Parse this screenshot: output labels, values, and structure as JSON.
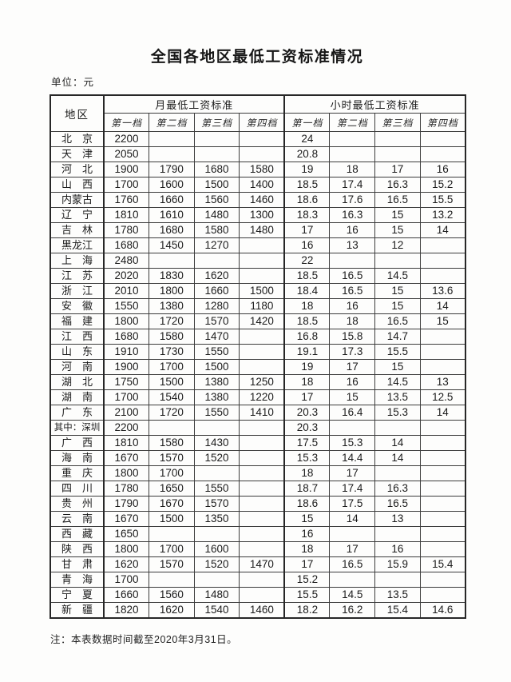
{
  "page": {
    "title": "全国各地区最低工资标准情况",
    "unit_label": "单位：元",
    "note": "注：本表数据时间截至2020年3月31日。"
  },
  "table": {
    "region_header": "地区",
    "monthly_group_header": "月最低工资标准",
    "hourly_group_header": "小时最低工资标准",
    "tier_headers": [
      "第一档",
      "第二档",
      "第三档",
      "第四档"
    ],
    "rows": [
      {
        "region": "北　京",
        "monthly": [
          "2200",
          "",
          "",
          ""
        ],
        "hourly": [
          "24",
          "",
          "",
          ""
        ]
      },
      {
        "region": "天　津",
        "monthly": [
          "2050",
          "",
          "",
          ""
        ],
        "hourly": [
          "20.8",
          "",
          "",
          ""
        ]
      },
      {
        "region": "河　北",
        "monthly": [
          "1900",
          "1790",
          "1680",
          "1580"
        ],
        "hourly": [
          "19",
          "18",
          "17",
          "16"
        ]
      },
      {
        "region": "山　西",
        "monthly": [
          "1700",
          "1600",
          "1500",
          "1400"
        ],
        "hourly": [
          "18.5",
          "17.4",
          "16.3",
          "15.2"
        ]
      },
      {
        "region": "内蒙古",
        "monthly": [
          "1760",
          "1660",
          "1560",
          "1460"
        ],
        "hourly": [
          "18.6",
          "17.6",
          "16.5",
          "15.5"
        ]
      },
      {
        "region": "辽　宁",
        "monthly": [
          "1810",
          "1610",
          "1480",
          "1300"
        ],
        "hourly": [
          "18.3",
          "16.3",
          "15",
          "13.2"
        ]
      },
      {
        "region": "吉　林",
        "monthly": [
          "1780",
          "1680",
          "1580",
          "1480"
        ],
        "hourly": [
          "17",
          "16",
          "15",
          "14"
        ]
      },
      {
        "region": "黑龙江",
        "monthly": [
          "1680",
          "1450",
          "1270",
          ""
        ],
        "hourly": [
          "16",
          "13",
          "12",
          ""
        ]
      },
      {
        "region": "上　海",
        "monthly": [
          "2480",
          "",
          "",
          ""
        ],
        "hourly": [
          "22",
          "",
          "",
          ""
        ]
      },
      {
        "region": "江　苏",
        "monthly": [
          "2020",
          "1830",
          "1620",
          ""
        ],
        "hourly": [
          "18.5",
          "16.5",
          "14.5",
          ""
        ]
      },
      {
        "region": "浙　江",
        "monthly": [
          "2010",
          "1800",
          "1660",
          "1500"
        ],
        "hourly": [
          "18.4",
          "16.5",
          "15",
          "13.6"
        ]
      },
      {
        "region": "安　徽",
        "monthly": [
          "1550",
          "1380",
          "1280",
          "1180"
        ],
        "hourly": [
          "18",
          "16",
          "15",
          "14"
        ]
      },
      {
        "region": "福　建",
        "monthly": [
          "1800",
          "1720",
          "1570",
          "1420"
        ],
        "hourly": [
          "18.5",
          "18",
          "16.5",
          "15"
        ]
      },
      {
        "region": "江　西",
        "monthly": [
          "1680",
          "1580",
          "1470",
          ""
        ],
        "hourly": [
          "16.8",
          "15.8",
          "14.7",
          ""
        ]
      },
      {
        "region": "山　东",
        "monthly": [
          "1910",
          "1730",
          "1550",
          ""
        ],
        "hourly": [
          "19.1",
          "17.3",
          "15.5",
          ""
        ]
      },
      {
        "region": "河　南",
        "monthly": [
          "1900",
          "1700",
          "1500",
          ""
        ],
        "hourly": [
          "19",
          "17",
          "15",
          ""
        ]
      },
      {
        "region": "湖　北",
        "monthly": [
          "1750",
          "1500",
          "1380",
          "1250"
        ],
        "hourly": [
          "18",
          "16",
          "14.5",
          "13"
        ]
      },
      {
        "region": "湖　南",
        "monthly": [
          "1700",
          "1540",
          "1380",
          "1220"
        ],
        "hourly": [
          "17",
          "15",
          "13.5",
          "12.5"
        ]
      },
      {
        "region": "广　东",
        "monthly": [
          "2100",
          "1720",
          "1550",
          "1410"
        ],
        "hourly": [
          "20.3",
          "16.4",
          "15.3",
          "14"
        ]
      },
      {
        "region": "其中：深圳",
        "monthly": [
          "2200",
          "",
          "",
          ""
        ],
        "hourly": [
          "20.3",
          "",
          "",
          ""
        ]
      },
      {
        "region": "广　西",
        "monthly": [
          "1810",
          "1580",
          "1430",
          ""
        ],
        "hourly": [
          "17.5",
          "15.3",
          "14",
          ""
        ]
      },
      {
        "region": "海　南",
        "monthly": [
          "1670",
          "1570",
          "1520",
          ""
        ],
        "hourly": [
          "15.3",
          "14.4",
          "14",
          ""
        ]
      },
      {
        "region": "重　庆",
        "monthly": [
          "1800",
          "1700",
          "",
          ""
        ],
        "hourly": [
          "18",
          "17",
          "",
          ""
        ]
      },
      {
        "region": "四　川",
        "monthly": [
          "1780",
          "1650",
          "1550",
          ""
        ],
        "hourly": [
          "18.7",
          "17.4",
          "16.3",
          ""
        ]
      },
      {
        "region": "贵　州",
        "monthly": [
          "1790",
          "1670",
          "1570",
          ""
        ],
        "hourly": [
          "18.6",
          "17.5",
          "16.5",
          ""
        ]
      },
      {
        "region": "云　南",
        "monthly": [
          "1670",
          "1500",
          "1350",
          ""
        ],
        "hourly": [
          "15",
          "14",
          "13",
          ""
        ]
      },
      {
        "region": "西　藏",
        "monthly": [
          "1650",
          "",
          "",
          ""
        ],
        "hourly": [
          "16",
          "",
          "",
          ""
        ]
      },
      {
        "region": "陕　西",
        "monthly": [
          "1800",
          "1700",
          "1600",
          ""
        ],
        "hourly": [
          "18",
          "17",
          "16",
          ""
        ]
      },
      {
        "region": "甘　肃",
        "monthly": [
          "1620",
          "1570",
          "1520",
          "1470"
        ],
        "hourly": [
          "17",
          "16.5",
          "15.9",
          "15.4"
        ]
      },
      {
        "region": "青　海",
        "monthly": [
          "1700",
          "",
          "",
          ""
        ],
        "hourly": [
          "15.2",
          "",
          "",
          ""
        ]
      },
      {
        "region": "宁　夏",
        "monthly": [
          "1660",
          "1560",
          "1480",
          ""
        ],
        "hourly": [
          "15.5",
          "14.5",
          "13.5",
          ""
        ]
      },
      {
        "region": "新　疆",
        "monthly": [
          "1820",
          "1620",
          "1540",
          "1460"
        ],
        "hourly": [
          "18.2",
          "16.2",
          "15.4",
          "14.6"
        ]
      }
    ]
  }
}
